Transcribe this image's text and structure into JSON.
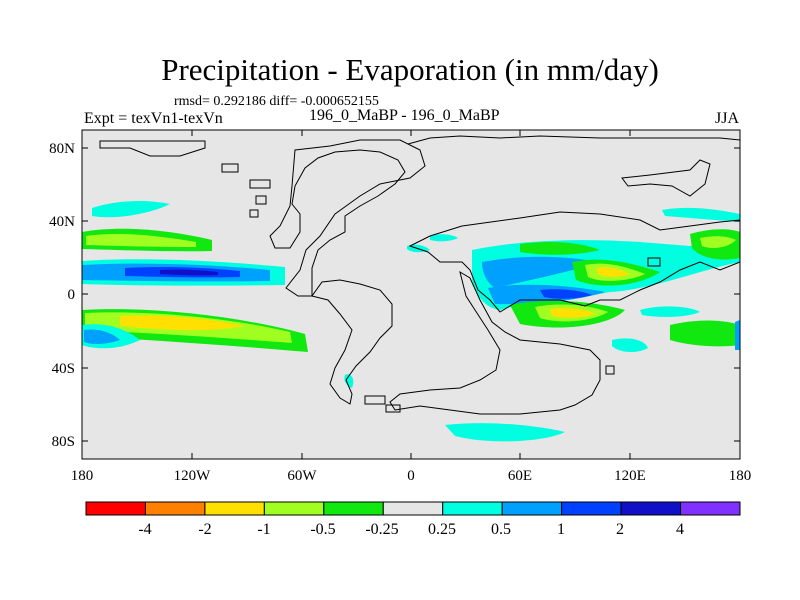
{
  "header": {
    "title": "Precipitation - Evaporation (in mm/day)",
    "stats": "rmsd= 0.292186 diff= -0.000652155",
    "experiment": "Expt = texVn1-texVn",
    "case": "196_0_MaBP - 196_0_MaBP",
    "season": "JJA"
  },
  "axes": {
    "lat_labels": [
      "80N",
      "40N",
      "0",
      "40S",
      "80S"
    ],
    "lon_labels": [
      "180",
      "120W",
      "60W",
      "0",
      "60E",
      "120E",
      "180"
    ]
  },
  "colorbar": {
    "levels": [
      "-4",
      "-2",
      "-1",
      "-0.5",
      "-0.25",
      "0.25",
      "0.5",
      "1",
      "2",
      "4"
    ],
    "colors": [
      "#ff0000",
      "#ff8000",
      "#ffe000",
      "#a0ff20",
      "#10e810",
      "#e6e6e6",
      "#00ffe0",
      "#00a0ff",
      "#0040ff",
      "#1010c8",
      "#8030ff"
    ]
  },
  "colors": {
    "ocean_background": "#e6e6e6",
    "coastline": "#000000"
  }
}
